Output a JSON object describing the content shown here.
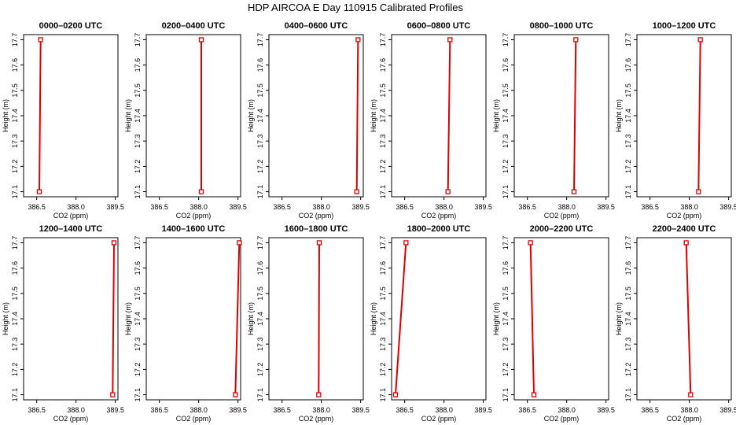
{
  "title": "HDP AIRCOA E  Day 110915  Calibrated Profiles",
  "colors": {
    "line": "#dd0000",
    "marker": "#dd0000",
    "axis": "#000000",
    "background": "#ffffff"
  },
  "chart_data": [
    {
      "type": "line",
      "title": "0000–0200 UTC",
      "xlabel": "CO2 (ppm)",
      "ylabel": "Height (m)",
      "xlim": [
        386.0,
        389.6
      ],
      "ylim": [
        17.08,
        17.72
      ],
      "xticks": [
        "386.5",
        "388.0",
        "389.5"
      ],
      "yticks": [
        "17.1",
        "17.2",
        "17.3",
        "17.4",
        "17.5",
        "17.6",
        "17.7"
      ],
      "grid": false,
      "series": [
        {
          "x": [
            386.6,
            386.65
          ],
          "y": [
            17.1,
            17.7
          ]
        }
      ]
    },
    {
      "type": "line",
      "title": "0200–0400 UTC",
      "xlabel": "CO2 (ppm)",
      "ylabel": "Height (m)",
      "xlim": [
        386.0,
        389.6
      ],
      "ylim": [
        17.08,
        17.72
      ],
      "xticks": [
        "386.5",
        "388.0",
        "389.5"
      ],
      "yticks": [
        "17.1",
        "17.2",
        "17.3",
        "17.4",
        "17.5",
        "17.6",
        "17.7"
      ],
      "grid": false,
      "series": [
        {
          "x": [
            388.1,
            388.1
          ],
          "y": [
            17.1,
            17.7
          ]
        }
      ]
    },
    {
      "type": "line",
      "title": "0400–0600 UTC",
      "xlabel": "CO2 (ppm)",
      "ylabel": "Height (m)",
      "xlim": [
        386.0,
        389.6
      ],
      "ylim": [
        17.08,
        17.72
      ],
      "xticks": [
        "386.5",
        "388.0",
        "389.5"
      ],
      "yticks": [
        "17.1",
        "17.2",
        "17.3",
        "17.4",
        "17.5",
        "17.6",
        "17.7"
      ],
      "grid": false,
      "series": [
        {
          "x": [
            389.35,
            389.4
          ],
          "y": [
            17.1,
            17.7
          ]
        }
      ]
    },
    {
      "type": "line",
      "title": "0600–0800 UTC",
      "xlabel": "CO2 (ppm)",
      "ylabel": "Height (m)",
      "xlim": [
        386.0,
        389.6
      ],
      "ylim": [
        17.08,
        17.72
      ],
      "xticks": [
        "386.5",
        "388.0",
        "389.5"
      ],
      "yticks": [
        "17.1",
        "17.2",
        "17.3",
        "17.4",
        "17.5",
        "17.6",
        "17.7"
      ],
      "grid": false,
      "series": [
        {
          "x": [
            388.15,
            388.23
          ],
          "y": [
            17.1,
            17.7
          ]
        }
      ]
    },
    {
      "type": "line",
      "title": "0800–1000 UTC",
      "xlabel": "CO2 (ppm)",
      "ylabel": "Height (m)",
      "xlim": [
        386.0,
        389.6
      ],
      "ylim": [
        17.08,
        17.72
      ],
      "xticks": [
        "386.5",
        "388.0",
        "389.5"
      ],
      "yticks": [
        "17.1",
        "17.2",
        "17.3",
        "17.4",
        "17.5",
        "17.6",
        "17.7"
      ],
      "grid": false,
      "series": [
        {
          "x": [
            388.28,
            388.35
          ],
          "y": [
            17.1,
            17.7
          ]
        }
      ]
    },
    {
      "type": "line",
      "title": "1000–1200 UTC",
      "xlabel": "CO2 (ppm)",
      "ylabel": "Height (m)",
      "xlim": [
        386.0,
        389.6
      ],
      "ylim": [
        17.08,
        17.72
      ],
      "xticks": [
        "386.5",
        "388.0",
        "389.5"
      ],
      "yticks": [
        "17.1",
        "17.2",
        "17.3",
        "17.4",
        "17.5",
        "17.6",
        "17.7"
      ],
      "grid": false,
      "series": [
        {
          "x": [
            388.35,
            388.42
          ],
          "y": [
            17.1,
            17.7
          ]
        }
      ]
    },
    {
      "type": "line",
      "title": "1200–1400 UTC",
      "xlabel": "CO2 (ppm)",
      "ylabel": "Height (m)",
      "xlim": [
        386.0,
        389.6
      ],
      "ylim": [
        17.08,
        17.72
      ],
      "xticks": [
        "386.5",
        "388.0",
        "389.5"
      ],
      "yticks": [
        "17.1",
        "17.2",
        "17.3",
        "17.4",
        "17.5",
        "17.6",
        "17.7"
      ],
      "grid": false,
      "series": [
        {
          "x": [
            389.4,
            389.45
          ],
          "y": [
            17.1,
            17.7
          ]
        }
      ]
    },
    {
      "type": "line",
      "title": "1400–1600 UTC",
      "xlabel": "CO2 (ppm)",
      "ylabel": "Height (m)",
      "xlim": [
        386.0,
        389.6
      ],
      "ylim": [
        17.08,
        17.72
      ],
      "xticks": [
        "386.5",
        "388.0",
        "389.5"
      ],
      "yticks": [
        "17.1",
        "17.2",
        "17.3",
        "17.4",
        "17.5",
        "17.6",
        "17.7"
      ],
      "grid": false,
      "series": [
        {
          "x": [
            389.4,
            389.55
          ],
          "y": [
            17.1,
            17.7
          ]
        }
      ]
    },
    {
      "type": "line",
      "title": "1600–1800 UTC",
      "xlabel": "CO2 (ppm)",
      "ylabel": "Height (m)",
      "xlim": [
        386.0,
        389.6
      ],
      "ylim": [
        17.08,
        17.72
      ],
      "xticks": [
        "386.5",
        "388.0",
        "389.5"
      ],
      "yticks": [
        "17.1",
        "17.2",
        "17.3",
        "17.4",
        "17.5",
        "17.6",
        "17.7"
      ],
      "grid": false,
      "series": [
        {
          "x": [
            387.9,
            387.92
          ],
          "y": [
            17.1,
            17.7
          ]
        }
      ]
    },
    {
      "type": "line",
      "title": "1800–2000 UTC",
      "xlabel": "CO2 (ppm)",
      "ylabel": "Height (m)",
      "xlim": [
        386.0,
        389.6
      ],
      "ylim": [
        17.08,
        17.72
      ],
      "xticks": [
        "386.5",
        "388.0",
        "389.5"
      ],
      "yticks": [
        "17.1",
        "17.2",
        "17.3",
        "17.4",
        "17.5",
        "17.6",
        "17.7"
      ],
      "grid": false,
      "series": [
        {
          "x": [
            386.15,
            386.55
          ],
          "y": [
            17.1,
            17.7
          ]
        }
      ]
    },
    {
      "type": "line",
      "title": "2000–2200 UTC",
      "xlabel": "CO2 (ppm)",
      "ylabel": "Height (m)",
      "xlim": [
        386.0,
        389.6
      ],
      "ylim": [
        17.08,
        17.72
      ],
      "xticks": [
        "386.5",
        "388.0",
        "389.5"
      ],
      "yticks": [
        "17.1",
        "17.2",
        "17.3",
        "17.4",
        "17.5",
        "17.6",
        "17.7"
      ],
      "grid": false,
      "series": [
        {
          "x": [
            386.75,
            386.62
          ],
          "y": [
            17.1,
            17.7
          ]
        }
      ]
    },
    {
      "type": "line",
      "title": "2200–2400 UTC",
      "xlabel": "CO2 (ppm)",
      "ylabel": "Height (m)",
      "xlim": [
        386.0,
        389.6
      ],
      "ylim": [
        17.08,
        17.72
      ],
      "xticks": [
        "386.5",
        "388.0",
        "389.5"
      ],
      "yticks": [
        "17.1",
        "17.2",
        "17.3",
        "17.4",
        "17.5",
        "17.6",
        "17.7"
      ],
      "grid": false,
      "series": [
        {
          "x": [
            388.05,
            387.88
          ],
          "y": [
            17.1,
            17.7
          ]
        }
      ]
    }
  ]
}
